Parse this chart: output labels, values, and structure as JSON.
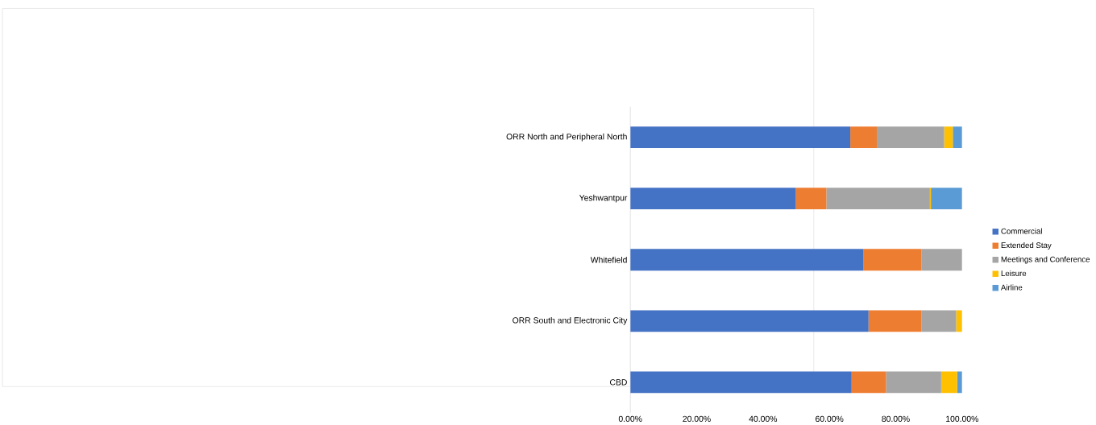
{
  "chart_data": {
    "type": "bar",
    "orientation": "horizontal",
    "stacked": true,
    "categories": [
      "ORR North and Peripheral North",
      "Yeshwantpur",
      "Whitefield",
      "ORR South and Electronic City",
      "CBD"
    ],
    "series": [
      {
        "name": "Commercial",
        "color": "#4472c4",
        "values": [
          66.3,
          49.9,
          70.3,
          71.8,
          66.7
        ]
      },
      {
        "name": "Extended Stay",
        "color": "#ed7d31",
        "values": [
          8.0,
          9.2,
          17.5,
          15.9,
          10.4
        ]
      },
      {
        "name": "Meetings and Conference",
        "color": "#a5a5a5",
        "values": [
          20.3,
          31.2,
          12.2,
          10.5,
          16.6
        ]
      },
      {
        "name": "Leisure",
        "color": "#ffc000",
        "values": [
          2.6,
          0.3,
          null,
          1.8,
          4.8
        ]
      },
      {
        "name": "Airline",
        "color": "#5b9bd5",
        "values": [
          2.8,
          9.4,
          null,
          null,
          1.5
        ]
      }
    ],
    "xlim": [
      0,
      100
    ],
    "xticks": [
      {
        "value": 0,
        "label": "0.00%"
      },
      {
        "value": 20,
        "label": "20.00%"
      },
      {
        "value": 40,
        "label": "40.00%"
      },
      {
        "value": 60,
        "label": "60.00%"
      },
      {
        "value": 80,
        "label": "80.00%"
      },
      {
        "value": 100,
        "label": "100.00%"
      }
    ],
    "legend": "right",
    "grid": false
  }
}
